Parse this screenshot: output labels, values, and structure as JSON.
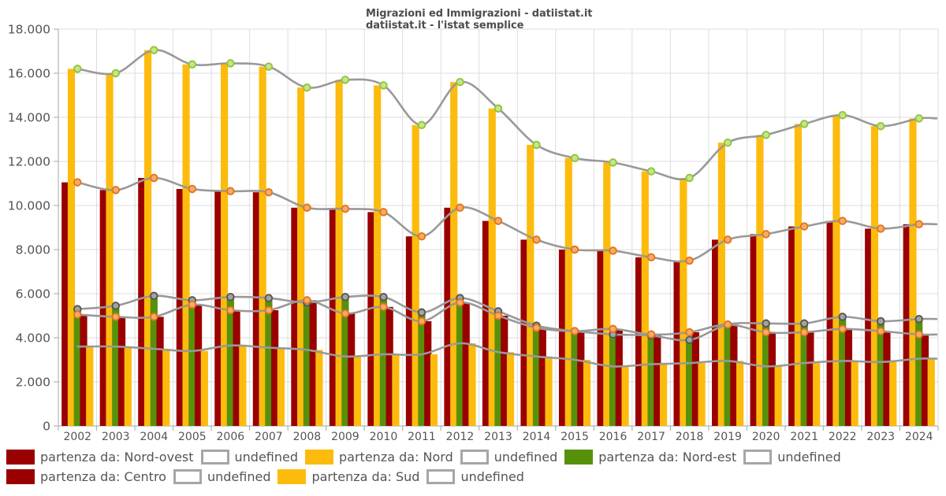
{
  "title": {
    "line1": "Migrazioni ed Immigrazioni - datiistat.it",
    "line2": "datiistat.it - l'istat semplice"
  },
  "axis": {
    "y_tick_labels": [
      "0",
      "2.000",
      "4.000",
      "6.000",
      "8.000",
      "10.000",
      "12.000",
      "14.000",
      "16.000",
      "18.000"
    ],
    "x_tick_labels": [
      "2002",
      "2003",
      "2004",
      "2005",
      "2006",
      "2007",
      "2008",
      "2009",
      "2010",
      "2011",
      "2012",
      "2013",
      "2014",
      "2015",
      "2016",
      "2017",
      "2018",
      "2019",
      "2020",
      "2021",
      "2022",
      "2023",
      "2024"
    ]
  },
  "chart_data": {
    "type": "bar",
    "title": "Migrazioni ed Immigrazioni - datiistat.it",
    "subtitle": "datiistat.it - l'istat semplice",
    "ylim": [
      0,
      18000
    ],
    "ytick_step": 2000,
    "grid": true,
    "legend_position": "bottom",
    "overlay": "each bar series also drawn as smooth gray spline through yearly values (legend label: undefined)",
    "categories": [
      "2002",
      "2003",
      "2004",
      "2005",
      "2006",
      "2007",
      "2008",
      "2009",
      "2010",
      "2011",
      "2012",
      "2013",
      "2014",
      "2015",
      "2016",
      "2017",
      "2018",
      "2019",
      "2020",
      "2021",
      "2022",
      "2023",
      "2024"
    ],
    "series": [
      {
        "name": "partenza da: Nord-ovest",
        "color": "#9a0000",
        "marker": {
          "stroke": "#e0751f",
          "fill": "#f8ab66"
        },
        "values": [
          11050,
          10700,
          11250,
          10750,
          10650,
          10600,
          9900,
          9850,
          9700,
          8600,
          9900,
          9300,
          8450,
          8000,
          7950,
          7650,
          7500,
          8450,
          8700,
          9050,
          9300,
          8950,
          9150
        ]
      },
      {
        "name": "partenza da: Nord",
        "color": "#fcbb0d",
        "marker": {
          "stroke": "#8cc63f",
          "fill": "#cbe387"
        },
        "values": [
          16200,
          16000,
          17050,
          16400,
          16450,
          16300,
          15350,
          15700,
          15450,
          13650,
          15600,
          14400,
          12750,
          12150,
          11950,
          11550,
          11250,
          12850,
          13200,
          13700,
          14100,
          13600,
          13950
        ]
      },
      {
        "name": "partenza da: Nord-est",
        "color": "#57910c",
        "marker": {
          "stroke": "#555555",
          "fill": "#a3a3a3"
        },
        "values": [
          5300,
          5450,
          5900,
          5700,
          5850,
          5800,
          5600,
          5850,
          5850,
          5150,
          5800,
          5200,
          4550,
          4300,
          4150,
          4100,
          3900,
          4600,
          4650,
          4650,
          4950,
          4750,
          4850
        ]
      },
      {
        "name": "partenza da: Centro",
        "color": "#9a0000",
        "marker": {
          "stroke": "#e0751f",
          "fill": "#f8ab66"
        },
        "values": [
          5050,
          4950,
          4950,
          5500,
          5250,
          5250,
          5700,
          5100,
          5400,
          4750,
          5600,
          5000,
          4450,
          4300,
          4400,
          4150,
          4250,
          4600,
          4250,
          4250,
          4400,
          4300,
          4150
        ]
      },
      {
        "name": "partenza da: Sud",
        "color": "#fcbb0d",
        "marker": null,
        "values": [
          3600,
          3600,
          3500,
          3400,
          3650,
          3550,
          3450,
          3150,
          3250,
          3250,
          3750,
          3350,
          3150,
          3000,
          2700,
          2800,
          2850,
          2950,
          2700,
          2850,
          2950,
          2900,
          3050
        ]
      }
    ]
  },
  "legend": {
    "rows": [
      [
        {
          "label": "partenza da: Nord-ovest",
          "swatch": "#9a0000",
          "type": "bar"
        },
        {
          "label": "undefined",
          "swatch": "#ffffff",
          "type": "line"
        },
        {
          "label": "partenza da: Nord",
          "swatch": "#fcbb0d",
          "type": "bar"
        },
        {
          "label": "undefined",
          "swatch": "#ffffff",
          "type": "line"
        },
        {
          "label": "partenza da: Nord-est",
          "swatch": "#57910c",
          "type": "bar"
        },
        {
          "label": "undefined",
          "swatch": "#ffffff",
          "type": "line"
        }
      ],
      [
        {
          "label": "partenza da: Centro",
          "swatch": "#9a0000",
          "type": "bar"
        },
        {
          "label": "undefined",
          "swatch": "#ffffff",
          "type": "line"
        },
        {
          "label": "partenza da: Sud",
          "swatch": "#fcbb0d",
          "type": "bar"
        },
        {
          "label": "undefined",
          "swatch": "#ffffff",
          "type": "line"
        }
      ]
    ]
  },
  "colors": {
    "grid": "#dddddd",
    "axis": "#b3b3b3",
    "tick": "#b3b3b3",
    "label_text": "#555555",
    "title_text": "#4d4d4d",
    "spline": "#999999"
  }
}
